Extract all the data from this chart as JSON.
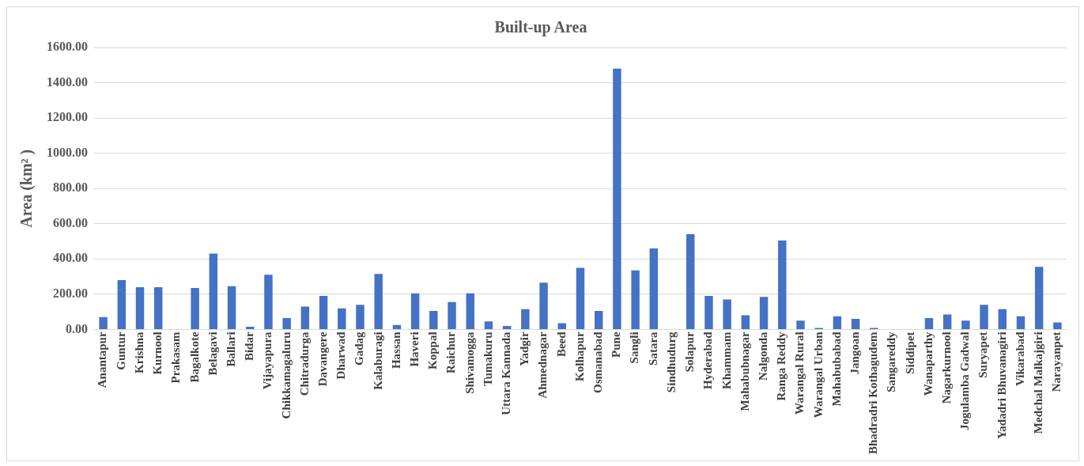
{
  "chart_data": {
    "type": "bar",
    "title": "Built-up Area",
    "ylabel": "Area (km² )",
    "categories": [
      "Anantapur",
      "Guntur",
      "Krishna",
      "Kurnool",
      "Prakasam",
      "Bagalkote",
      "Belagavi",
      "Ballari",
      "Bidar",
      "Vijayapura",
      "Chikkamagaluru",
      "Chitradurga",
      "Davangere",
      "Dharwad",
      "Gadag",
      "Kalaburagi",
      "Hassan",
      "Haveri",
      "Koppal",
      "Raichur",
      "Shivamogga",
      "Tumakuru",
      "Uttara Kannada",
      "Yadgir",
      "Ahmednagar",
      "Beed",
      "Kolhapur",
      "Osmanabad",
      "Pune",
      "Sangli",
      "Satara",
      "Sindhudurg",
      "Solapur",
      "Hyderabad",
      "Khammam",
      "Mahabubnagar",
      "Nalgonda",
      "Ranga Reddy",
      "Warangal Rural",
      "Warangal Urban",
      "Mahabubabad",
      "Jangoan",
      "Bhadradri Kothagudem",
      "Sangareddy",
      "Siddipet",
      "Wanaparthy",
      "Nagarkurnool",
      "Jogulamba Gadwal",
      "Suryapet",
      "Yadadri Bhuvanagiri",
      "Vikarabad",
      "Medchal Malkajgiri",
      "Narayanpet"
    ],
    "values": [
      70,
      280,
      240,
      240,
      0,
      235,
      430,
      245,
      15,
      310,
      65,
      130,
      190,
      120,
      140,
      315,
      25,
      205,
      105,
      155,
      205,
      45,
      20,
      115,
      265,
      35,
      350,
      105,
      1480,
      335,
      460,
      0,
      540,
      190,
      170,
      80,
      185,
      505,
      50,
      8,
      75,
      60,
      8,
      0,
      0,
      65,
      85,
      50,
      140,
      115,
      75,
      355,
      40
    ],
    "color": "#4472c4",
    "ylim": [
      0,
      1600
    ],
    "yticks": [
      {
        "value": 0,
        "label": "0.00"
      },
      {
        "value": 200,
        "label": "200.00"
      },
      {
        "value": 400,
        "label": "400.00"
      },
      {
        "value": 600,
        "label": "600.00"
      },
      {
        "value": 800,
        "label": "800.00"
      },
      {
        "value": 1000,
        "label": "1000.00"
      },
      {
        "value": 1200,
        "label": "1200.00"
      },
      {
        "value": 1400,
        "label": "1400.00"
      },
      {
        "value": 1600,
        "label": "1600.00"
      }
    ],
    "grid": "y",
    "legend": false
  }
}
